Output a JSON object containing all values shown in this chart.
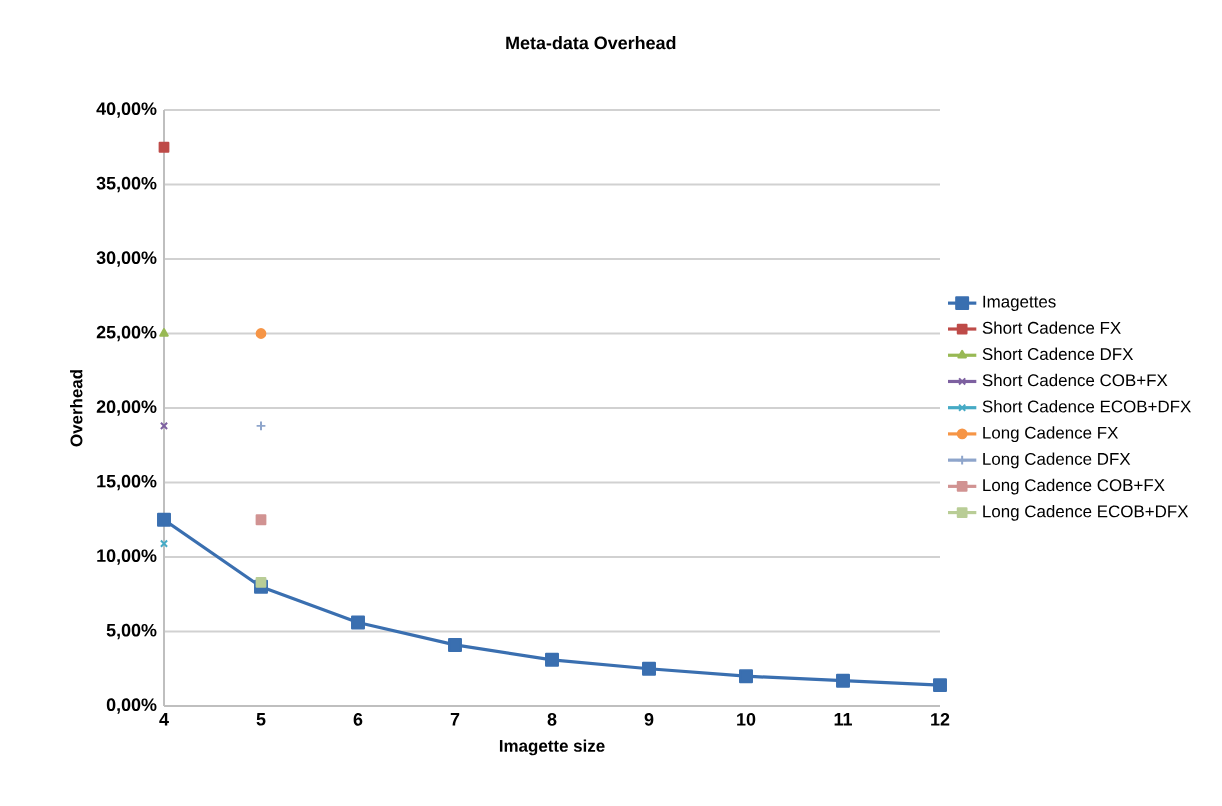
{
  "chart_data": {
    "type": "line",
    "title": "Meta-data Overhead",
    "xlabel": "Imagette size",
    "ylabel": "Overhead",
    "xlim": [
      4,
      12
    ],
    "xticks": [
      4,
      5,
      6,
      7,
      8,
      9,
      10,
      11,
      12
    ],
    "ylim": [
      0,
      40
    ],
    "yticks": [
      {
        "value": 0,
        "label": "0,00%"
      },
      {
        "value": 5,
        "label": "5,00%"
      },
      {
        "value": 10,
        "label": "10,00%"
      },
      {
        "value": 15,
        "label": "15,00%"
      },
      {
        "value": 20,
        "label": "20,00%"
      },
      {
        "value": 25,
        "label": "25,00%"
      },
      {
        "value": 30,
        "label": "30,00%"
      },
      {
        "value": 35,
        "label": "35,00%"
      },
      {
        "value": 40,
        "label": "40,00%"
      }
    ],
    "grid": "y",
    "legend": "right",
    "line_style": "solid",
    "series": [
      {
        "name": "Imagettes",
        "color": "#3a6fb0",
        "marker": "square",
        "x": [
          4,
          5,
          6,
          7,
          8,
          9,
          10,
          11,
          12
        ],
        "values": [
          12.5,
          8.0,
          5.6,
          4.1,
          3.1,
          2.5,
          2.0,
          1.7,
          1.4
        ]
      },
      {
        "name": "Short Cadence FX",
        "color": "#be4b48",
        "marker": "square",
        "x": [
          4
        ],
        "values": [
          37.5
        ]
      },
      {
        "name": "Short Cadence DFX",
        "color": "#98b954",
        "marker": "triangle",
        "x": [
          4
        ],
        "values": [
          25
        ]
      },
      {
        "name": "Short Cadence COB+FX",
        "color": "#7d60a0",
        "marker": "cross",
        "x": [
          4
        ],
        "values": [
          18.8
        ]
      },
      {
        "name": "Short Cadence ECOB+DFX",
        "color": "#46aac5",
        "marker": "cross",
        "x": [
          4
        ],
        "values": [
          10.9
        ]
      },
      {
        "name": "Long Cadence FX",
        "color": "#f69546",
        "marker": "circle",
        "x": [
          5
        ],
        "values": [
          25
        ]
      },
      {
        "name": "Long Cadence DFX",
        "color": "#8ea5cb",
        "marker": "plus",
        "x": [
          5
        ],
        "values": [
          18.8
        ]
      },
      {
        "name": "Long Cadence COB+FX",
        "color": "#d19392",
        "marker": "square",
        "x": [
          5
        ],
        "values": [
          12.5
        ]
      },
      {
        "name": "Long Cadence ECOB+DFX",
        "color": "#b9cd96",
        "marker": "square",
        "x": [
          5
        ],
        "values": [
          8.3
        ]
      }
    ]
  }
}
